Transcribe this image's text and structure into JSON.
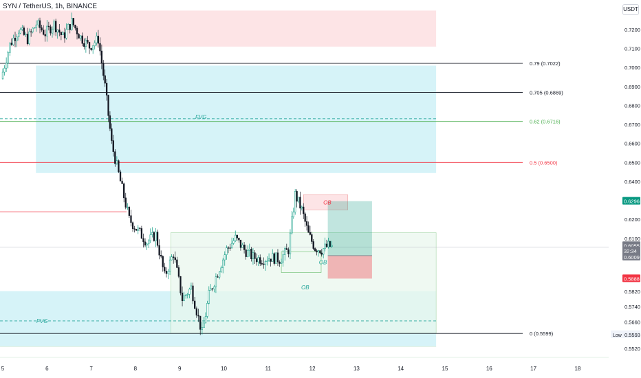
{
  "header": {
    "symbol_title": "SYN / TetherUS, 1h, BINANCE"
  },
  "price_axis": {
    "unit_button": "USDT",
    "ticks": [
      "0.7200",
      "0.7100",
      "0.7000",
      "0.6900",
      "0.6800",
      "0.6700",
      "0.6600",
      "0.6500",
      "0.6400",
      "0.6200",
      "0.6100",
      "0.5820",
      "0.5740",
      "0.5660",
      "0.5520"
    ],
    "badges": [
      {
        "value": "0.6296",
        "color": "#089981"
      },
      {
        "value": "0.6055",
        "color": "#787b86"
      },
      {
        "value": "32:34",
        "color": "#787b86"
      },
      {
        "value": "0.6009",
        "color": "#787b86"
      },
      {
        "value": "0.5888",
        "color": "#f23645"
      }
    ],
    "low_label": "Low",
    "low_value": "0.5593"
  },
  "time_axis": {
    "ticks": [
      "5",
      "6",
      "7",
      "8",
      "9",
      "10",
      "11",
      "12",
      "13",
      "14",
      "15",
      "16",
      "17",
      "18"
    ]
  },
  "fib_levels": [
    {
      "label": "0.79 (0.7022)",
      "price": 0.7022,
      "color": "#131722"
    },
    {
      "label": "0.705 (0.6869)",
      "price": 0.6869,
      "color": "#131722"
    },
    {
      "label": "0.62 (0.6716)",
      "price": 0.6716,
      "color": "#4caf50"
    },
    {
      "label": "0.5 (0.6500)",
      "price": 0.65,
      "color": "#f23645"
    },
    {
      "label": "0 (0.5599)",
      "price": 0.5599,
      "color": "#131722"
    }
  ],
  "annotations": {
    "fvg_upper": "FVG",
    "fvg_lower": "FVG",
    "ob_red": "OB",
    "ob_green_upper": "OB",
    "ob_green_lower": "OB"
  },
  "colors": {
    "up": "#089981",
    "down": "#131722",
    "zone_red": "#fde4e6",
    "zone_blue": "#d6f3f8",
    "zone_green": "#e8f6ec",
    "long_green": "#089981",
    "short_red": "#f23645"
  },
  "chart_data": {
    "type": "candlestick",
    "symbol": "SYN / TetherUS",
    "timeframe": "1h",
    "exchange": "BINANCE",
    "x_unit": "day",
    "x_range": [
      5,
      18.6
    ],
    "ylim": [
      0.5485,
      0.73
    ],
    "close_series": [
      [
        5.0,
        0.694
      ],
      [
        5.2,
        0.712
      ],
      [
        5.4,
        0.72
      ],
      [
        5.6,
        0.715
      ],
      [
        5.8,
        0.723
      ],
      [
        6.0,
        0.718
      ],
      [
        6.2,
        0.723
      ],
      [
        6.4,
        0.716
      ],
      [
        6.6,
        0.724
      ],
      [
        6.8,
        0.716
      ],
      [
        7.0,
        0.711
      ],
      [
        7.2,
        0.715
      ],
      [
        7.35,
        0.69
      ],
      [
        7.5,
        0.66
      ],
      [
        7.7,
        0.64
      ],
      [
        7.9,
        0.62
      ],
      [
        8.1,
        0.614
      ],
      [
        8.3,
        0.608
      ],
      [
        8.5,
        0.612
      ],
      [
        8.7,
        0.59
      ],
      [
        8.9,
        0.602
      ],
      [
        9.1,
        0.578
      ],
      [
        9.3,
        0.584
      ],
      [
        9.55,
        0.56
      ],
      [
        9.7,
        0.58
      ],
      [
        9.9,
        0.592
      ],
      [
        10.1,
        0.604
      ],
      [
        10.3,
        0.61
      ],
      [
        10.5,
        0.604
      ],
      [
        10.7,
        0.6
      ],
      [
        10.9,
        0.599
      ],
      [
        11.1,
        0.6
      ],
      [
        11.3,
        0.599
      ],
      [
        11.5,
        0.604
      ],
      [
        11.65,
        0.633
      ],
      [
        11.8,
        0.625
      ],
      [
        11.95,
        0.612
      ],
      [
        12.1,
        0.605
      ],
      [
        12.25,
        0.604
      ],
      [
        12.4,
        0.606
      ],
      [
        12.48,
        0.6055
      ]
    ],
    "long_position": {
      "entry": 0.6009,
      "target": 0.6296,
      "stop": 0.5888
    }
  }
}
